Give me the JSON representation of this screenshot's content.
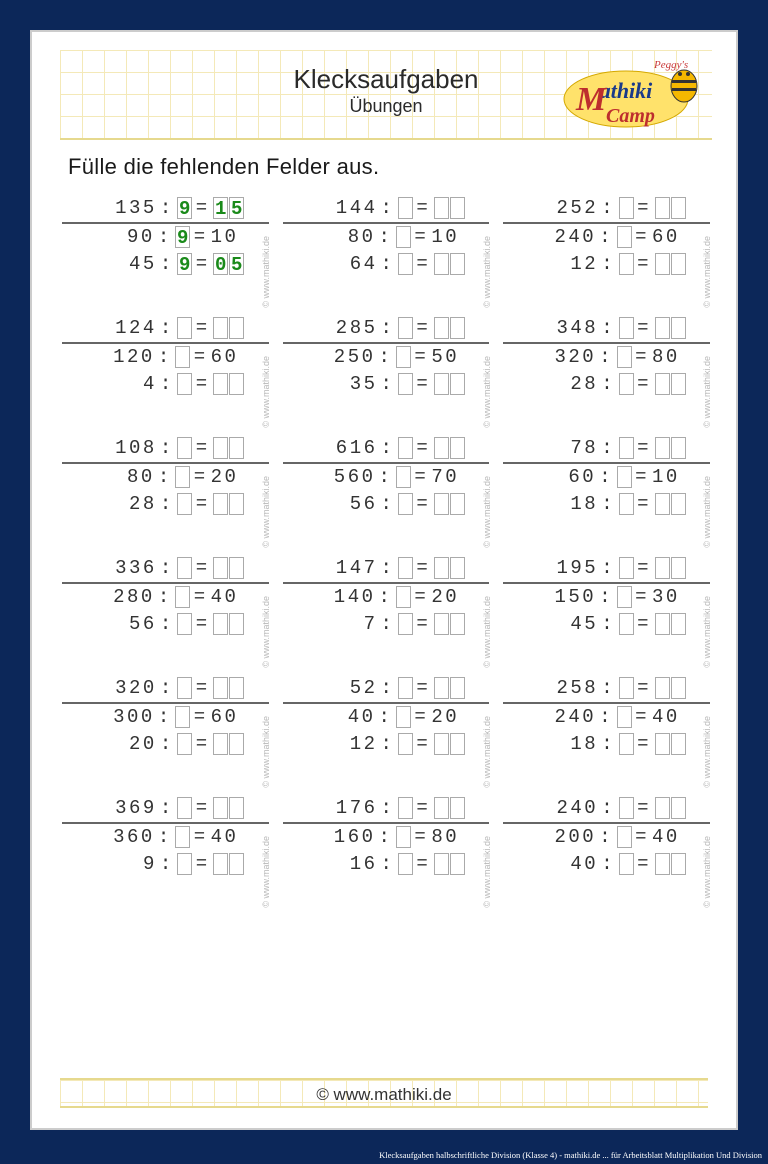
{
  "header": {
    "title": "Klecksaufgaben",
    "subtitle": "Übungen",
    "logo_text": "Peggy's Mathiki Camp"
  },
  "instruction": "Fülle die fehlenden Felder aus.",
  "watermark": "© www.mathiki.de",
  "footer": "© www.mathiki.de",
  "caption": "Klecksaufgaben halbschriftliche Division (Klasse 4) - mathiki.de ... für Arbeitsblatt Multiplikation Und Division",
  "colors": {
    "page_bg": "#0c2759",
    "sheet_bg": "#ffffff",
    "grid_line": "#f4e9b8",
    "text": "#333333",
    "box_border": "#aaaaaa",
    "filled_green": "#1a8a1a",
    "hr": "#666666"
  },
  "problems": [
    {
      "rows": [
        {
          "d": "135",
          "div": "9",
          "res": [
            "1",
            "5"
          ],
          "filled": true
        },
        {
          "d": "90",
          "div": "9",
          "res_text": "10",
          "filled_div": true,
          "line": true
        },
        {
          "d": "45",
          "div": "9",
          "res": [
            "0",
            "5"
          ],
          "filled": true
        }
      ]
    },
    {
      "rows": [
        {
          "d": "144",
          "div": "",
          "res": [
            "",
            ""
          ]
        },
        {
          "d": "80",
          "div": "",
          "res_text": "10",
          "line": true
        },
        {
          "d": "64",
          "div": "",
          "res": [
            "",
            ""
          ]
        }
      ]
    },
    {
      "rows": [
        {
          "d": "252",
          "div": "",
          "res": [
            "",
            ""
          ]
        },
        {
          "d": "240",
          "div": "",
          "res_text": "60",
          "line": true
        },
        {
          "d": "12",
          "div": "",
          "res": [
            "",
            ""
          ]
        }
      ]
    },
    {
      "rows": [
        {
          "d": "124",
          "div": "",
          "res": [
            "",
            ""
          ]
        },
        {
          "d": "120",
          "div": "",
          "res_text": "60",
          "line": true
        },
        {
          "d": "4",
          "div": "",
          "res": [
            "",
            ""
          ]
        }
      ]
    },
    {
      "rows": [
        {
          "d": "285",
          "div": "",
          "res": [
            "",
            ""
          ]
        },
        {
          "d": "250",
          "div": "",
          "res_text": "50",
          "line": true
        },
        {
          "d": "35",
          "div": "",
          "res": [
            "",
            ""
          ]
        }
      ]
    },
    {
      "rows": [
        {
          "d": "348",
          "div": "",
          "res": [
            "",
            ""
          ]
        },
        {
          "d": "320",
          "div": "",
          "res_text": "80",
          "line": true
        },
        {
          "d": "28",
          "div": "",
          "res": [
            "",
            ""
          ]
        }
      ]
    },
    {
      "rows": [
        {
          "d": "108",
          "div": "",
          "res": [
            "",
            ""
          ]
        },
        {
          "d": "80",
          "div": "",
          "res_text": "20",
          "line": true
        },
        {
          "d": "28",
          "div": "",
          "res": [
            "",
            ""
          ]
        }
      ]
    },
    {
      "rows": [
        {
          "d": "616",
          "div": "",
          "res": [
            "",
            ""
          ]
        },
        {
          "d": "560",
          "div": "",
          "res_text": "70",
          "line": true
        },
        {
          "d": "56",
          "div": "",
          "res": [
            "",
            ""
          ]
        }
      ]
    },
    {
      "rows": [
        {
          "d": "78",
          "div": "",
          "res": [
            "",
            ""
          ]
        },
        {
          "d": "60",
          "div": "",
          "res_text": "10",
          "line": true
        },
        {
          "d": "18",
          "div": "",
          "res": [
            "",
            ""
          ]
        }
      ]
    },
    {
      "rows": [
        {
          "d": "336",
          "div": "",
          "res": [
            "",
            ""
          ]
        },
        {
          "d": "280",
          "div": "",
          "res_text": "40",
          "line": true
        },
        {
          "d": "56",
          "div": "",
          "res": [
            "",
            ""
          ]
        }
      ]
    },
    {
      "rows": [
        {
          "d": "147",
          "div": "",
          "res": [
            "",
            ""
          ]
        },
        {
          "d": "140",
          "div": "",
          "res_text": "20",
          "line": true
        },
        {
          "d": "7",
          "div": "",
          "res": [
            "",
            ""
          ]
        }
      ]
    },
    {
      "rows": [
        {
          "d": "195",
          "div": "",
          "res": [
            "",
            ""
          ]
        },
        {
          "d": "150",
          "div": "",
          "res_text": "30",
          "line": true
        },
        {
          "d": "45",
          "div": "",
          "res": [
            "",
            ""
          ]
        }
      ]
    },
    {
      "rows": [
        {
          "d": "320",
          "div": "",
          "res": [
            "",
            ""
          ]
        },
        {
          "d": "300",
          "div": "",
          "res_text": "60",
          "line": true
        },
        {
          "d": "20",
          "div": "",
          "res": [
            "",
            ""
          ]
        }
      ]
    },
    {
      "rows": [
        {
          "d": "52",
          "div": "",
          "res": [
            "",
            ""
          ]
        },
        {
          "d": "40",
          "div": "",
          "res_text": "20",
          "line": true
        },
        {
          "d": "12",
          "div": "",
          "res": [
            "",
            ""
          ]
        }
      ]
    },
    {
      "rows": [
        {
          "d": "258",
          "div": "",
          "res": [
            "",
            ""
          ]
        },
        {
          "d": "240",
          "div": "",
          "res_text": "40",
          "line": true
        },
        {
          "d": "18",
          "div": "",
          "res": [
            "",
            ""
          ]
        }
      ]
    },
    {
      "rows": [
        {
          "d": "369",
          "div": "",
          "res": [
            "",
            ""
          ]
        },
        {
          "d": "360",
          "div": "",
          "res_text": "40",
          "line": true
        },
        {
          "d": "9",
          "div": "",
          "res": [
            "",
            ""
          ]
        }
      ]
    },
    {
      "rows": [
        {
          "d": "176",
          "div": "",
          "res": [
            "",
            ""
          ]
        },
        {
          "d": "160",
          "div": "",
          "res_text": "80",
          "line": true
        },
        {
          "d": "16",
          "div": "",
          "res": [
            "",
            ""
          ]
        }
      ]
    },
    {
      "rows": [
        {
          "d": "240",
          "div": "",
          "res": [
            "",
            ""
          ]
        },
        {
          "d": "200",
          "div": "",
          "res_text": "40",
          "line": true
        },
        {
          "d": "40",
          "div": "",
          "res": [
            "",
            ""
          ]
        }
      ]
    }
  ]
}
